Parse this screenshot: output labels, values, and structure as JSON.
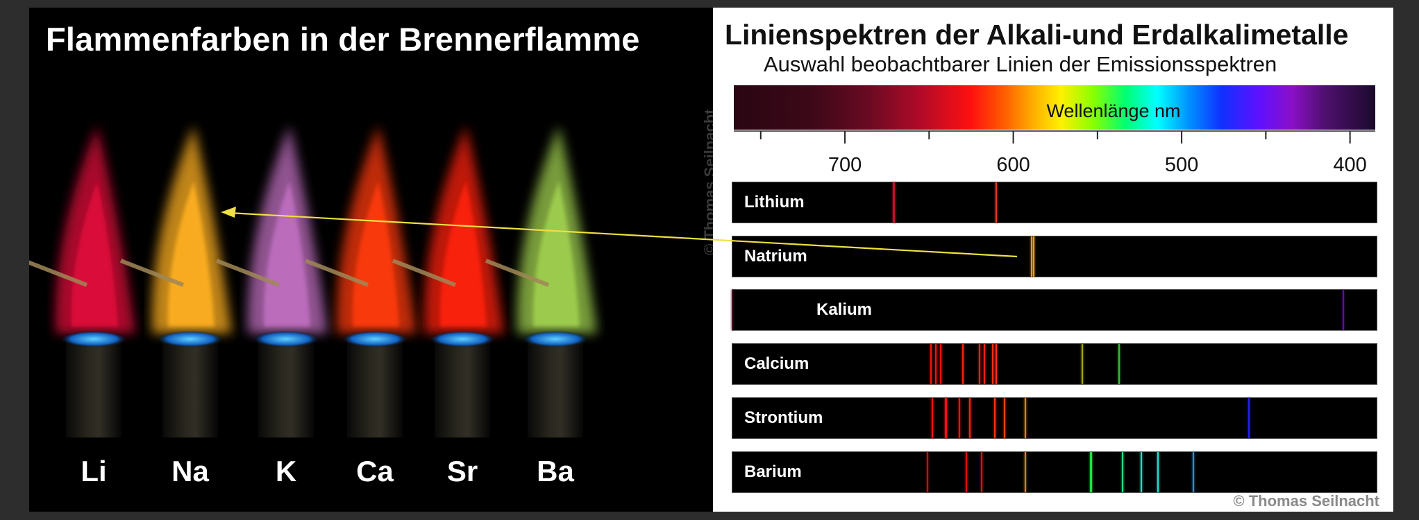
{
  "left": {
    "title": "Flammenfarben in der Brennerflamme",
    "credit": "© Thomas Seilnacht",
    "flames": [
      {
        "element": "Li",
        "color": "#e0103a"
      },
      {
        "element": "Na",
        "color": "#ffb020"
      },
      {
        "element": "K",
        "color": "#c070c0"
      },
      {
        "element": "Ca",
        "color": "#ff3a10"
      },
      {
        "element": "Sr",
        "color": "#ff2010"
      },
      {
        "element": "Ba",
        "color": "#a0d050"
      }
    ]
  },
  "right": {
    "title": "Linienspektren der Alkali-und Erdalkalimetalle",
    "subtitle": "Auswahl beobachtbarer Linien der Emissionsspektren",
    "axis_label": "Wellenlänge nm",
    "wavelength_range": [
      766,
      385
    ],
    "ticks": [
      700,
      600,
      500,
      400
    ],
    "copyright": "© Thomas Seilnacht",
    "spectra": [
      {
        "name": "Lithium",
        "lines": [
          {
            "nm": 671,
            "color": "#c0102a",
            "w": 2.5
          },
          {
            "nm": 610,
            "color": "#e0401a",
            "w": 2
          }
        ]
      },
      {
        "name": "Natrium",
        "lines": [
          {
            "nm": 589,
            "color": "#e0a020",
            "w": 2
          },
          {
            "nm": 588,
            "color": "#e0a020",
            "w": 2
          }
        ]
      },
      {
        "name": "Kalium",
        "lines": [
          {
            "nm": 767,
            "color": "#4a0a20",
            "w": 2
          },
          {
            "nm": 404,
            "color": "#5a10a0",
            "w": 2
          }
        ]
      },
      {
        "name": "Calcium",
        "lines": [
          {
            "nm": 649,
            "color": "#ff1010",
            "w": 2
          },
          {
            "nm": 646,
            "color": "#ff1010",
            "w": 2
          },
          {
            "nm": 643,
            "color": "#ff1010",
            "w": 2
          },
          {
            "nm": 630,
            "color": "#ff2010",
            "w": 2.5
          },
          {
            "nm": 620,
            "color": "#ff2010",
            "w": 2.5
          },
          {
            "nm": 617,
            "color": "#ff2010",
            "w": 2
          },
          {
            "nm": 612,
            "color": "#ff3010",
            "w": 2
          },
          {
            "nm": 610,
            "color": "#ff3010",
            "w": 2
          },
          {
            "nm": 559,
            "color": "#a0a020",
            "w": 2
          },
          {
            "nm": 537,
            "color": "#30c030",
            "w": 2
          }
        ]
      },
      {
        "name": "Strontium",
        "lines": [
          {
            "nm": 648,
            "color": "#ff1010",
            "w": 2
          },
          {
            "nm": 640,
            "color": "#ff1010",
            "w": 2.5
          },
          {
            "nm": 632,
            "color": "#ff1010",
            "w": 2
          },
          {
            "nm": 626,
            "color": "#ff2010",
            "w": 2
          },
          {
            "nm": 611,
            "color": "#ff3010",
            "w": 2.5
          },
          {
            "nm": 605,
            "color": "#ff4010",
            "w": 2
          },
          {
            "nm": 593,
            "color": "#e08010",
            "w": 2
          },
          {
            "nm": 460,
            "color": "#2020f0",
            "w": 2
          }
        ]
      },
      {
        "name": "Barium",
        "lines": [
          {
            "nm": 651,
            "color": "#c01010",
            "w": 2
          },
          {
            "nm": 628,
            "color": "#e01010",
            "w": 2
          },
          {
            "nm": 619,
            "color": "#e01010",
            "w": 2
          },
          {
            "nm": 593,
            "color": "#d08020",
            "w": 2
          },
          {
            "nm": 554,
            "color": "#20e040",
            "w": 3
          },
          {
            "nm": 535,
            "color": "#20e080",
            "w": 2.5
          },
          {
            "nm": 524,
            "color": "#20e0c0",
            "w": 2.5
          },
          {
            "nm": 514,
            "color": "#20e0d0",
            "w": 2.5
          },
          {
            "nm": 493,
            "color": "#2090e0",
            "w": 2
          }
        ]
      }
    ]
  }
}
